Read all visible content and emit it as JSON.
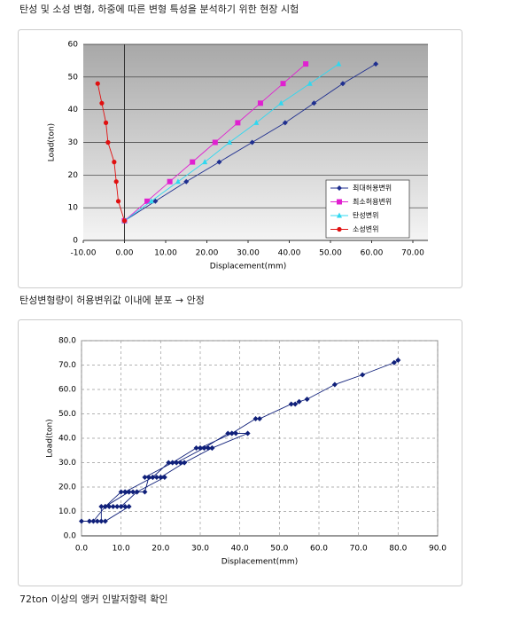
{
  "heading": "탄성 및 소성 변형, 하중에 따른 변형 특성을 분석하기 위한 현장 시험",
  "chart_data": [
    {
      "type": "line",
      "ylabel": "Load(ton)",
      "xlabel": "Displacement(mm)",
      "xlim": [
        -10,
        70
      ],
      "ylim": [
        0,
        60
      ],
      "xticks": [
        {
          "value": -10,
          "label": "-10.00"
        },
        {
          "value": 0,
          "label": "0.00"
        },
        {
          "value": 10,
          "label": "10.00"
        },
        {
          "value": 20,
          "label": "20.00"
        },
        {
          "value": 30,
          "label": "30.00"
        },
        {
          "value": 40,
          "label": "40.00"
        },
        {
          "value": 50,
          "label": "50.00"
        },
        {
          "value": 60,
          "label": "60.00"
        },
        {
          "value": 70,
          "label": "70.00"
        }
      ],
      "yticks": [
        0,
        10,
        20,
        30,
        40,
        50,
        60
      ],
      "grid": "horizontal",
      "legend": "lower-right",
      "series": [
        {
          "name": "최대허용변위",
          "color": "#1f2f8f",
          "marker": "diamond",
          "x": [
            0,
            7.5,
            15,
            23,
            31,
            39,
            46,
            53,
            61
          ],
          "values": [
            6,
            12,
            18,
            24,
            30,
            36,
            42,
            48,
            54
          ]
        },
        {
          "name": "최소허용변위",
          "color": "#e020d0",
          "marker": "square",
          "x": [
            0,
            5.5,
            11,
            16.5,
            22,
            27.5,
            33,
            38.5,
            44
          ],
          "values": [
            6,
            12,
            18,
            24,
            30,
            36,
            42,
            48,
            54
          ]
        },
        {
          "name": "탄성변위",
          "color": "#30d8f0",
          "marker": "triangle",
          "x": [
            0,
            6.5,
            13,
            19.5,
            25.5,
            32,
            38,
            45,
            52
          ],
          "values": [
            6,
            12,
            18,
            24,
            30,
            36,
            42,
            48,
            54
          ]
        },
        {
          "name": "소성변위",
          "color": "#e01010",
          "marker": "circle",
          "x": [
            0,
            -1.5,
            -2,
            -2.5,
            -4,
            -4.5,
            -5.5,
            -6.5
          ],
          "values": [
            6,
            12,
            18,
            24,
            30,
            36,
            42,
            48
          ]
        }
      ]
    },
    {
      "type": "line",
      "ylabel": "Load(ton)",
      "xlabel": "Displacement(mm)",
      "xlim": [
        0,
        90
      ],
      "ylim": [
        0,
        80
      ],
      "xticks": [
        {
          "value": 0,
          "label": "0.0"
        },
        {
          "value": 10,
          "label": "10.0"
        },
        {
          "value": 20,
          "label": "20.0"
        },
        {
          "value": 30,
          "label": "30.0"
        },
        {
          "value": 40,
          "label": "40.0"
        },
        {
          "value": 50,
          "label": "50.0"
        },
        {
          "value": 60,
          "label": "60.0"
        },
        {
          "value": 70,
          "label": "70.0"
        },
        {
          "value": 80,
          "label": "80.0"
        },
        {
          "value": 90,
          "label": "90.0"
        }
      ],
      "yticks": [
        {
          "value": 0,
          "label": "0.0"
        },
        {
          "value": 10,
          "label": "10.0"
        },
        {
          "value": 20,
          "label": "20.0"
        },
        {
          "value": 30,
          "label": "30.0"
        },
        {
          "value": 40,
          "label": "40.0"
        },
        {
          "value": 50,
          "label": "50.0"
        },
        {
          "value": 60,
          "label": "60.0"
        },
        {
          "value": 70,
          "label": "70.0"
        },
        {
          "value": 80,
          "label": "80.0"
        }
      ],
      "grid": "both",
      "series": [
        {
          "color": "#10207a",
          "marker": "diamond",
          "x": [
            0,
            2,
            4,
            5,
            5,
            6,
            7,
            8,
            9,
            10,
            11,
            12,
            6,
            3,
            6,
            10,
            11,
            12,
            13,
            14,
            10,
            6,
            12,
            16,
            17,
            18,
            19,
            20,
            21,
            14,
            11,
            18,
            22,
            23,
            24,
            25,
            26,
            20,
            16,
            23,
            29,
            30,
            31,
            32,
            33,
            26,
            24,
            31,
            37,
            38,
            39,
            42,
            33,
            30,
            38,
            44,
            45,
            53,
            54,
            55,
            57,
            64,
            71,
            79,
            80
          ],
          "values": [
            6,
            6,
            6,
            6,
            12,
            12,
            12,
            12,
            12,
            12,
            12,
            12,
            6,
            6,
            12,
            18,
            18,
            18,
            18,
            18,
            12,
            12,
            18,
            18,
            24,
            24,
            24,
            24,
            24,
            18,
            18,
            24,
            30,
            30,
            30,
            30,
            30,
            24,
            24,
            30,
            36,
            36,
            36,
            36,
            36,
            30,
            30,
            36,
            42,
            42,
            42,
            42,
            36,
            36,
            42,
            48,
            48,
            54,
            54,
            55,
            56,
            62,
            66,
            71,
            72
          ]
        }
      ]
    }
  ],
  "captions": [
    "탄성변형량이 허용변위값 이내에 분포 → 안정",
    "72ton 이상의 앵커 인발저항력 확인"
  ]
}
